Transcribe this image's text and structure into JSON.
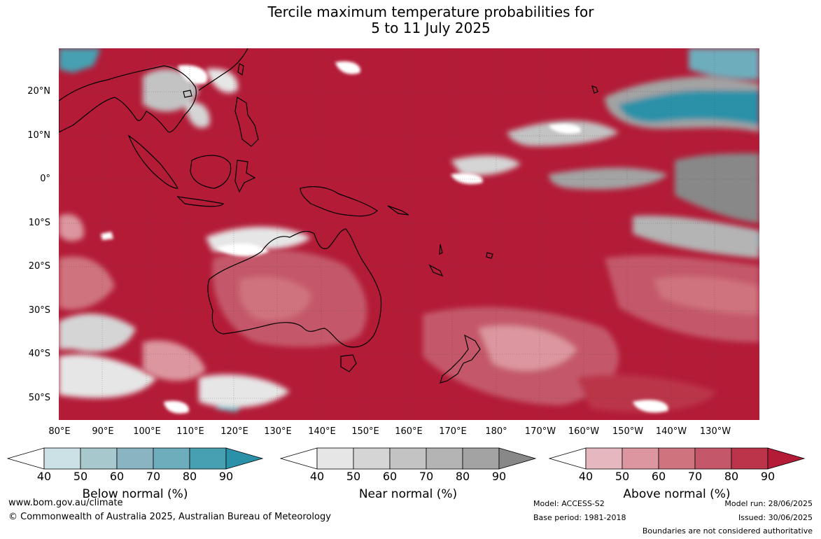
{
  "title": {
    "line1": "Tercile maximum temperature probabilities for",
    "line2": "5 to 11 July 2025"
  },
  "map": {
    "region": "Indo-Pacific / Australasia",
    "lat_labels": [
      "20°N",
      "10°N",
      "0°",
      "10°S",
      "20°S",
      "30°S",
      "40°S",
      "50°S"
    ],
    "lon_labels": [
      "80°E",
      "90°E",
      "100°E",
      "110°E",
      "120°E",
      "130°E",
      "140°E",
      "150°E",
      "160°E",
      "170°E",
      "180°",
      "170°W",
      "160°W",
      "150°W",
      "140°W",
      "130°W"
    ],
    "ocean_color": "#b31b37"
  },
  "legends": [
    {
      "title": "Below normal (%)",
      "ticks": [
        "40",
        "50",
        "60",
        "70",
        "80",
        "90"
      ],
      "colors": [
        "#ffffff",
        "#cbe1e6",
        "#a7c8cc",
        "#8ab4c2",
        "#6eadbc",
        "#47a0b1",
        "#2b91a8"
      ]
    },
    {
      "title": "Near normal (%)",
      "ticks": [
        "40",
        "50",
        "60",
        "70",
        "80",
        "90"
      ],
      "colors": [
        "#ffffff",
        "#e6e6e6",
        "#d5d5d5",
        "#c3c3c3",
        "#b4b4b4",
        "#a3a3a3",
        "#888888"
      ]
    },
    {
      "title": "Above normal (%)",
      "ticks": [
        "40",
        "50",
        "60",
        "70",
        "80",
        "90"
      ],
      "colors": [
        "#ffffff",
        "#e5b7bf",
        "#dc969f",
        "#cf737e",
        "#c4586a",
        "#bb3449",
        "#b31b37"
      ]
    }
  ],
  "footer": {
    "website": "www.bom.gov.au/climate",
    "copyright": "© Commonwealth of Australia 2025, Australian Bureau of Meteorology",
    "model": "Model: ACCESS-S2",
    "base_period": "Base period: 1981-2018",
    "model_run": "Model run: 28/06/2025",
    "issued": "Issued: 30/06/2025",
    "disclaimer": "Boundaries are not considered authoritative"
  }
}
